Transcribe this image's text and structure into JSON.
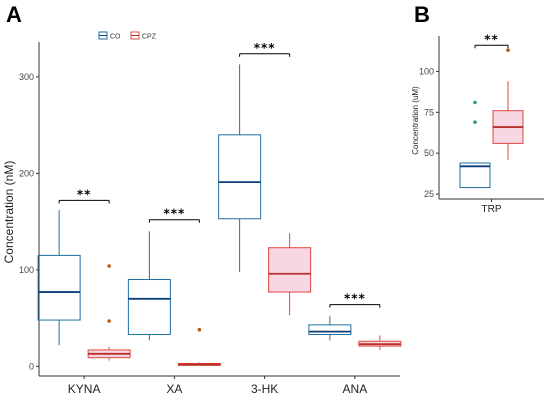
{
  "colors": {
    "co": "#1f6f9f",
    "cpz": "#e0483c",
    "co_median": "#0e3f7a",
    "cpz_median": "#b5322a",
    "outlier_co": "#2a9a74",
    "outlier_cpz": "#b5581a"
  },
  "chart_data": [
    {
      "panel": "A",
      "type": "box",
      "ylabel": "Concentration (nM)",
      "ylim": [
        -10,
        330
      ],
      "yticks": [
        0,
        100,
        200,
        300
      ],
      "categories": [
        "KYNA",
        "XA",
        "3-HK",
        "ANA"
      ],
      "legend": {
        "placement": "top-left",
        "entries": [
          "CO",
          "CPZ"
        ]
      },
      "series": [
        {
          "name": "CO",
          "boxes": [
            {
              "category": "KYNA",
              "min": 22,
              "q1": 48,
              "median": 77,
              "q3": 115,
              "max": 162,
              "outliers": []
            },
            {
              "category": "XA",
              "min": 27,
              "q1": 33,
              "median": 70,
              "q3": 90,
              "max": 140,
              "outliers": []
            },
            {
              "category": "3-HK",
              "min": 98,
              "q1": 153,
              "median": 191,
              "q3": 240,
              "max": 313,
              "outliers": []
            },
            {
              "category": "ANA",
              "min": 27,
              "q1": 33,
              "median": 36,
              "q3": 43,
              "max": 52,
              "outliers": []
            }
          ]
        },
        {
          "name": "CPZ",
          "boxes": [
            {
              "category": "KYNA",
              "min": 6,
              "q1": 9,
              "median": 13,
              "q3": 17,
              "max": 20,
              "outliers": [
                47,
                104
              ]
            },
            {
              "category": "XA",
              "min": 1,
              "q1": 1,
              "median": 2,
              "q3": 3,
              "max": 4,
              "outliers": [
                38
              ]
            },
            {
              "category": "3-HK",
              "min": 53,
              "q1": 77,
              "median": 96,
              "q3": 123,
              "max": 138,
              "outliers": []
            },
            {
              "category": "ANA",
              "min": 17,
              "q1": 21,
              "median": 23,
              "q3": 26,
              "max": 32,
              "outliers": []
            }
          ]
        }
      ],
      "significance": [
        {
          "category": "KYNA",
          "label": "**",
          "y": 172
        },
        {
          "category": "XA",
          "label": "***",
          "y": 152
        },
        {
          "category": "3-HK",
          "label": "***",
          "y": 324
        },
        {
          "category": "ANA",
          "label": "***",
          "y": 64
        }
      ]
    },
    {
      "panel": "B",
      "type": "box",
      "ylabel": "Concentration (uM)",
      "ylim": [
        22,
        118
      ],
      "yticks": [
        25,
        50,
        75,
        100
      ],
      "categories": [
        "TRP"
      ],
      "series": [
        {
          "name": "CO",
          "boxes": [
            {
              "category": "TRP",
              "min": 29,
              "q1": 29,
              "median": 42,
              "q3": 44,
              "max": 44,
              "outliers": [
                69,
                81
              ]
            }
          ]
        },
        {
          "name": "CPZ",
          "boxes": [
            {
              "category": "TRP",
              "min": 46,
              "q1": 56,
              "median": 66,
              "q3": 76,
              "max": 94,
              "outliers": [
                113
              ]
            }
          ]
        }
      ],
      "significance": [
        {
          "category": "TRP",
          "label": "**",
          "y": 116
        }
      ]
    }
  ]
}
